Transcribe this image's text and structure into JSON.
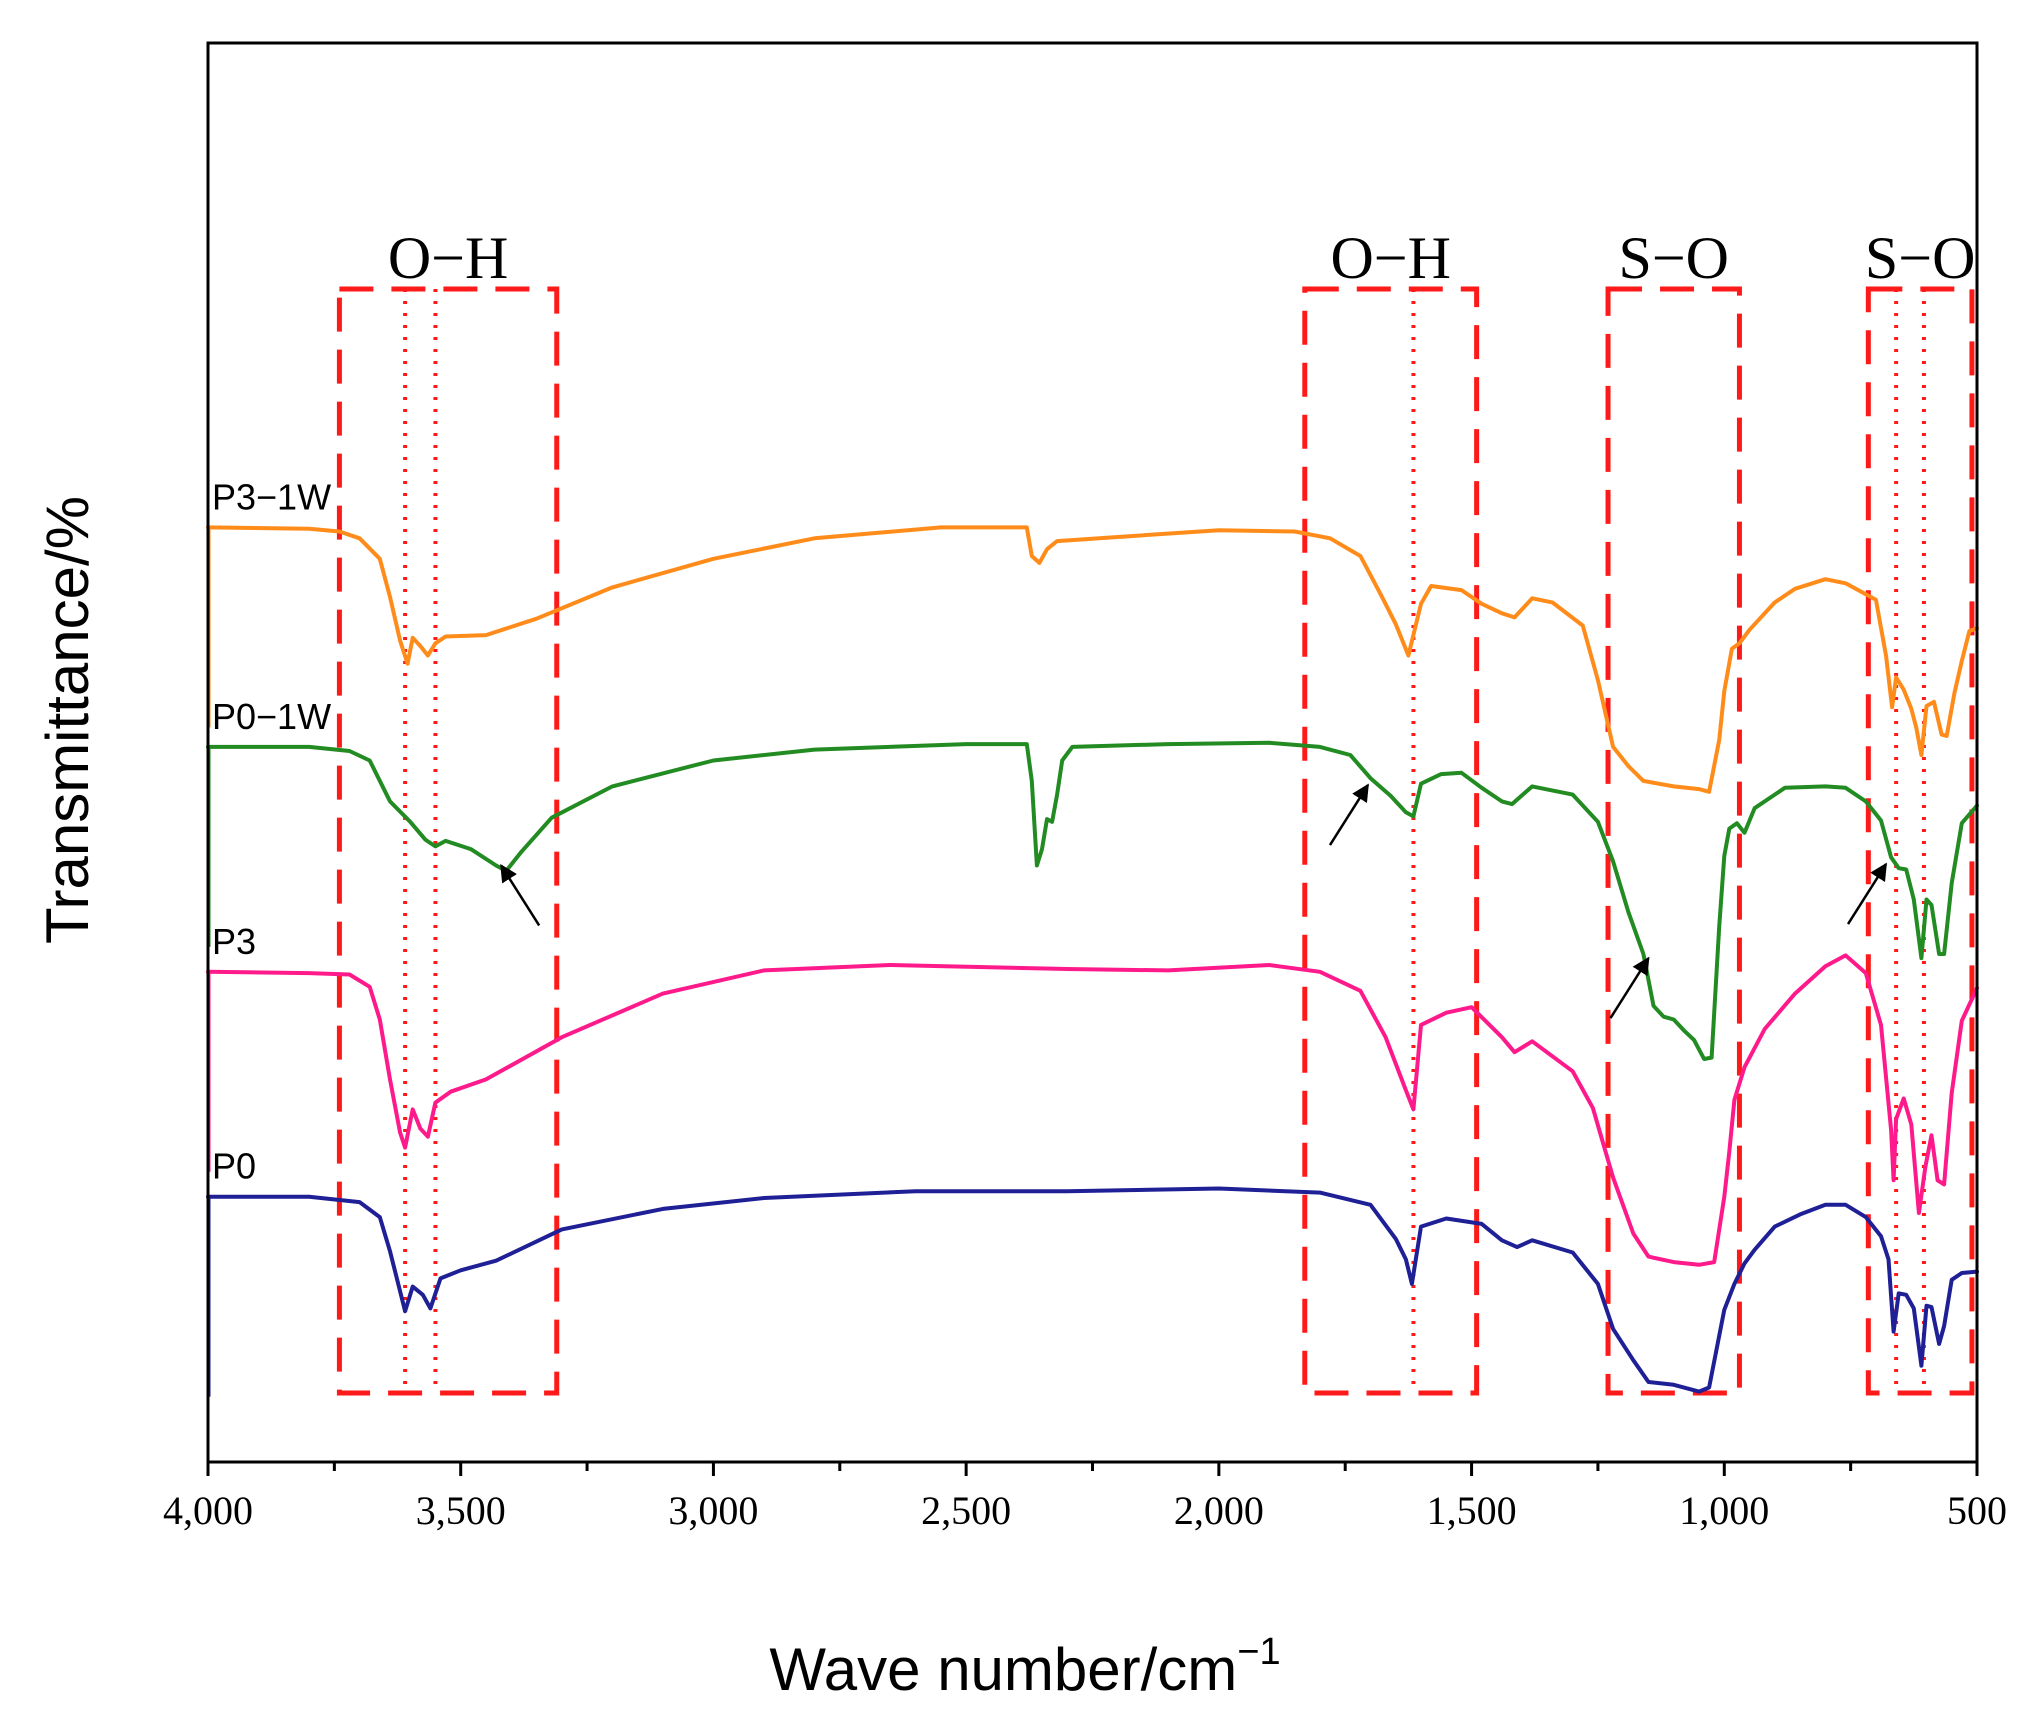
{
  "chart_data": {
    "type": "line",
    "title": "",
    "xlabel": "Wave number/cm",
    "xlabel_superscript": "−1",
    "ylabel": "Transmittance/%",
    "xlim": [
      4000,
      500
    ],
    "x_reversed": true,
    "ylim": [
      0,
      100
    ],
    "y_ticks_shown": false,
    "xticks": [
      4000,
      3500,
      3000,
      2500,
      2000,
      1500,
      1000,
      500
    ],
    "xtick_labels": [
      "4,000",
      "3,500",
      "3,000",
      "2,500",
      "2,000",
      "1,500",
      "1,000",
      "500"
    ],
    "series": [
      {
        "name": "P0",
        "color": "#1f1f96",
        "points": [
          [
            4000,
            18
          ],
          [
            3800,
            18
          ],
          [
            3700,
            17.6
          ],
          [
            3660,
            16.5
          ],
          [
            3640,
            14
          ],
          [
            3610,
            9.6
          ],
          [
            3595,
            11.4
          ],
          [
            3575,
            10.8
          ],
          [
            3560,
            9.8
          ],
          [
            3540,
            12.0
          ],
          [
            3500,
            12.6
          ],
          [
            3430,
            13.3
          ],
          [
            3300,
            15.6
          ],
          [
            3100,
            17.1
          ],
          [
            2900,
            17.9
          ],
          [
            2600,
            18.4
          ],
          [
            2300,
            18.4
          ],
          [
            2000,
            18.6
          ],
          [
            1800,
            18.3
          ],
          [
            1700,
            17.4
          ],
          [
            1650,
            14.9
          ],
          [
            1630,
            13.4
          ],
          [
            1618,
            11.6
          ],
          [
            1600,
            15.8
          ],
          [
            1550,
            16.4
          ],
          [
            1480,
            16.0
          ],
          [
            1440,
            14.8
          ],
          [
            1410,
            14.3
          ],
          [
            1380,
            14.8
          ],
          [
            1300,
            13.9
          ],
          [
            1250,
            11.6
          ],
          [
            1220,
            8.3
          ],
          [
            1180,
            6.0
          ],
          [
            1150,
            4.4
          ],
          [
            1100,
            4.2
          ],
          [
            1050,
            3.7
          ],
          [
            1030,
            4.0
          ],
          [
            1000,
            9.7
          ],
          [
            980,
            11.6
          ],
          [
            960,
            13.1
          ],
          [
            940,
            14.1
          ],
          [
            900,
            15.8
          ],
          [
            850,
            16.7
          ],
          [
            800,
            17.4
          ],
          [
            760,
            17.4
          ],
          [
            720,
            16.5
          ],
          [
            690,
            15.1
          ],
          [
            675,
            13.4
          ],
          [
            665,
            8.1
          ],
          [
            655,
            10.9
          ],
          [
            640,
            10.8
          ],
          [
            625,
            9.8
          ],
          [
            610,
            5.6
          ],
          [
            600,
            10.0
          ],
          [
            590,
            9.9
          ],
          [
            575,
            7.2
          ],
          [
            565,
            8.5
          ],
          [
            550,
            11.9
          ],
          [
            530,
            12.4
          ],
          [
            500,
            12.5
          ]
        ]
      },
      {
        "name": "P3",
        "color": "#ff1a8c",
        "points": [
          [
            4000,
            34.5
          ],
          [
            3800,
            34.4
          ],
          [
            3720,
            34.3
          ],
          [
            3680,
            33.4
          ],
          [
            3660,
            31.0
          ],
          [
            3640,
            26.6
          ],
          [
            3620,
            22.7
          ],
          [
            3610,
            21.6
          ],
          [
            3595,
            24.4
          ],
          [
            3580,
            23.0
          ],
          [
            3565,
            22.4
          ],
          [
            3550,
            24.9
          ],
          [
            3520,
            25.7
          ],
          [
            3450,
            26.6
          ],
          [
            3300,
            29.7
          ],
          [
            3100,
            32.9
          ],
          [
            2900,
            34.6
          ],
          [
            2650,
            35.0
          ],
          [
            2300,
            34.7
          ],
          [
            2100,
            34.6
          ],
          [
            1900,
            35.0
          ],
          [
            1800,
            34.5
          ],
          [
            1720,
            33.1
          ],
          [
            1670,
            29.7
          ],
          [
            1630,
            25.8
          ],
          [
            1615,
            24.4
          ],
          [
            1600,
            30.6
          ],
          [
            1550,
            31.5
          ],
          [
            1500,
            31.9
          ],
          [
            1440,
            29.7
          ],
          [
            1415,
            28.6
          ],
          [
            1380,
            29.4
          ],
          [
            1300,
            27.2
          ],
          [
            1260,
            24.5
          ],
          [
            1220,
            19.4
          ],
          [
            1180,
            15.3
          ],
          [
            1150,
            13.6
          ],
          [
            1100,
            13.2
          ],
          [
            1050,
            13.0
          ],
          [
            1020,
            13.2
          ],
          [
            1000,
            18.0
          ],
          [
            990,
            21.3
          ],
          [
            980,
            25.1
          ],
          [
            960,
            27.5
          ],
          [
            920,
            30.3
          ],
          [
            860,
            32.9
          ],
          [
            800,
            34.9
          ],
          [
            760,
            35.7
          ],
          [
            720,
            34.4
          ],
          [
            690,
            30.6
          ],
          [
            670,
            22.9
          ],
          [
            665,
            19.2
          ],
          [
            660,
            23.7
          ],
          [
            645,
            25.2
          ],
          [
            630,
            23.3
          ],
          [
            615,
            16.8
          ],
          [
            602,
            20.2
          ],
          [
            590,
            22.5
          ],
          [
            578,
            19.2
          ],
          [
            565,
            18.9
          ],
          [
            550,
            25.6
          ],
          [
            530,
            30.9
          ],
          [
            500,
            33.3
          ]
        ]
      },
      {
        "name": "P0−1W",
        "color": "#228b22",
        "points": [
          [
            4000,
            51.0
          ],
          [
            3800,
            51.0
          ],
          [
            3720,
            50.7
          ],
          [
            3680,
            50.0
          ],
          [
            3640,
            47.0
          ],
          [
            3600,
            45.5
          ],
          [
            3570,
            44.2
          ],
          [
            3550,
            43.7
          ],
          [
            3530,
            44.1
          ],
          [
            3480,
            43.5
          ],
          [
            3430,
            42.3
          ],
          [
            3410,
            41.9
          ],
          [
            3380,
            43.3
          ],
          [
            3320,
            45.8
          ],
          [
            3200,
            48.1
          ],
          [
            3000,
            50.0
          ],
          [
            2800,
            50.8
          ],
          [
            2500,
            51.2
          ],
          [
            2380,
            51.2
          ],
          [
            2370,
            48.5
          ],
          [
            2360,
            42.3
          ],
          [
            2350,
            43.5
          ],
          [
            2340,
            45.7
          ],
          [
            2330,
            45.5
          ],
          [
            2320,
            47.5
          ],
          [
            2310,
            50.0
          ],
          [
            2290,
            51.0
          ],
          [
            2100,
            51.2
          ],
          [
            1900,
            51.3
          ],
          [
            1800,
            51.0
          ],
          [
            1740,
            50.4
          ],
          [
            1700,
            48.7
          ],
          [
            1660,
            47.4
          ],
          [
            1630,
            46.2
          ],
          [
            1615,
            45.9
          ],
          [
            1600,
            48.3
          ],
          [
            1560,
            49.0
          ],
          [
            1520,
            49.1
          ],
          [
            1480,
            48.0
          ],
          [
            1440,
            47.0
          ],
          [
            1420,
            46.8
          ],
          [
            1380,
            48.1
          ],
          [
            1300,
            47.5
          ],
          [
            1250,
            45.5
          ],
          [
            1220,
            42.6
          ],
          [
            1190,
            38.9
          ],
          [
            1160,
            35.8
          ],
          [
            1140,
            32.0
          ],
          [
            1120,
            31.2
          ],
          [
            1100,
            31.0
          ],
          [
            1080,
            30.2
          ],
          [
            1060,
            29.5
          ],
          [
            1040,
            28.1
          ],
          [
            1025,
            28.2
          ],
          [
            1010,
            37.8
          ],
          [
            1000,
            43.0
          ],
          [
            990,
            45.0
          ],
          [
            975,
            45.4
          ],
          [
            960,
            44.7
          ],
          [
            940,
            46.5
          ],
          [
            880,
            48.0
          ],
          [
            800,
            48.1
          ],
          [
            760,
            48.0
          ],
          [
            720,
            47.0
          ],
          [
            690,
            45.6
          ],
          [
            670,
            42.9
          ],
          [
            655,
            42.1
          ],
          [
            640,
            42.0
          ],
          [
            625,
            39.8
          ],
          [
            610,
            35.5
          ],
          [
            600,
            39.8
          ],
          [
            590,
            39.4
          ],
          [
            575,
            35.8
          ],
          [
            565,
            35.8
          ],
          [
            550,
            41.0
          ],
          [
            530,
            45.4
          ],
          [
            500,
            46.7
          ]
        ]
      },
      {
        "name": "P3−1W",
        "color": "#ff8c1a",
        "points": [
          [
            4000,
            67.1
          ],
          [
            3800,
            67.0
          ],
          [
            3740,
            66.8
          ],
          [
            3700,
            66.3
          ],
          [
            3660,
            64.8
          ],
          [
            3640,
            62.0
          ],
          [
            3620,
            58.8
          ],
          [
            3605,
            57.1
          ],
          [
            3595,
            59.0
          ],
          [
            3580,
            58.4
          ],
          [
            3565,
            57.7
          ],
          [
            3550,
            58.6
          ],
          [
            3530,
            59.1
          ],
          [
            3450,
            59.2
          ],
          [
            3350,
            60.4
          ],
          [
            3200,
            62.7
          ],
          [
            3000,
            64.8
          ],
          [
            2800,
            66.3
          ],
          [
            2550,
            67.1
          ],
          [
            2380,
            67.1
          ],
          [
            2370,
            65.0
          ],
          [
            2355,
            64.5
          ],
          [
            2340,
            65.5
          ],
          [
            2320,
            66.1
          ],
          [
            2200,
            66.4
          ],
          [
            2000,
            66.9
          ],
          [
            1850,
            66.8
          ],
          [
            1780,
            66.3
          ],
          [
            1720,
            65.0
          ],
          [
            1680,
            62.2
          ],
          [
            1650,
            60.0
          ],
          [
            1625,
            57.7
          ],
          [
            1600,
            61.5
          ],
          [
            1580,
            62.8
          ],
          [
            1520,
            62.5
          ],
          [
            1480,
            61.5
          ],
          [
            1440,
            60.8
          ],
          [
            1415,
            60.5
          ],
          [
            1380,
            61.9
          ],
          [
            1340,
            61.6
          ],
          [
            1280,
            59.9
          ],
          [
            1250,
            55.9
          ],
          [
            1220,
            51.0
          ],
          [
            1190,
            49.6
          ],
          [
            1160,
            48.5
          ],
          [
            1130,
            48.3
          ],
          [
            1100,
            48.1
          ],
          [
            1050,
            47.9
          ],
          [
            1030,
            47.7
          ],
          [
            1010,
            51.5
          ],
          [
            1000,
            55.1
          ],
          [
            985,
            58.2
          ],
          [
            970,
            58.6
          ],
          [
            950,
            59.6
          ],
          [
            900,
            61.6
          ],
          [
            860,
            62.6
          ],
          [
            800,
            63.3
          ],
          [
            760,
            63.0
          ],
          [
            720,
            62.2
          ],
          [
            700,
            61.8
          ],
          [
            680,
            57.7
          ],
          [
            668,
            53.9
          ],
          [
            660,
            56.1
          ],
          [
            645,
            55.2
          ],
          [
            630,
            53.8
          ],
          [
            620,
            52.4
          ],
          [
            610,
            50.4
          ],
          [
            600,
            54.0
          ],
          [
            585,
            54.3
          ],
          [
            570,
            51.9
          ],
          [
            560,
            51.8
          ],
          [
            545,
            54.9
          ],
          [
            530,
            57.3
          ],
          [
            515,
            59.5
          ],
          [
            500,
            59.7
          ]
        ]
      }
    ],
    "series_labels": [
      {
        "text": "P3−1W",
        "x": 4000,
        "y": 67.1
      },
      {
        "text": "P0−1W",
        "x": 4000,
        "y": 51.0
      },
      {
        "text": "P3",
        "x": 4000,
        "y": 34.5
      },
      {
        "text": "P0",
        "x": 4000,
        "y": 18.0
      }
    ],
    "bands": [
      {
        "label": "O−H",
        "from": 3740,
        "to": 3310,
        "dotted_lines": [
          3610,
          3550
        ]
      },
      {
        "label": "O−H",
        "from": 1830,
        "to": 1490,
        "dotted_lines": [
          1615
        ]
      },
      {
        "label": "S−O",
        "from": 1230,
        "to": 970,
        "dotted_lines": []
      },
      {
        "label": "S−O",
        "from": 715,
        "to": 510,
        "dotted_lines": [
          660,
          605
        ]
      }
    ],
    "annotations": [
      {
        "type": "arrow",
        "target_x": 3420,
        "target_y": 42.3,
        "direction": "up-left"
      },
      {
        "type": "arrow",
        "target_x": 1705,
        "target_y": 48.2,
        "direction": "down-left"
      },
      {
        "type": "arrow",
        "target_x": 1150,
        "target_y": 35.5,
        "direction": "down-left"
      },
      {
        "type": "arrow",
        "target_x": 680,
        "target_y": 42.4,
        "direction": "down-left"
      }
    ],
    "colors": {
      "band_border": "#ff1a1a",
      "arrow": "#000000",
      "axis": "#000000"
    }
  }
}
